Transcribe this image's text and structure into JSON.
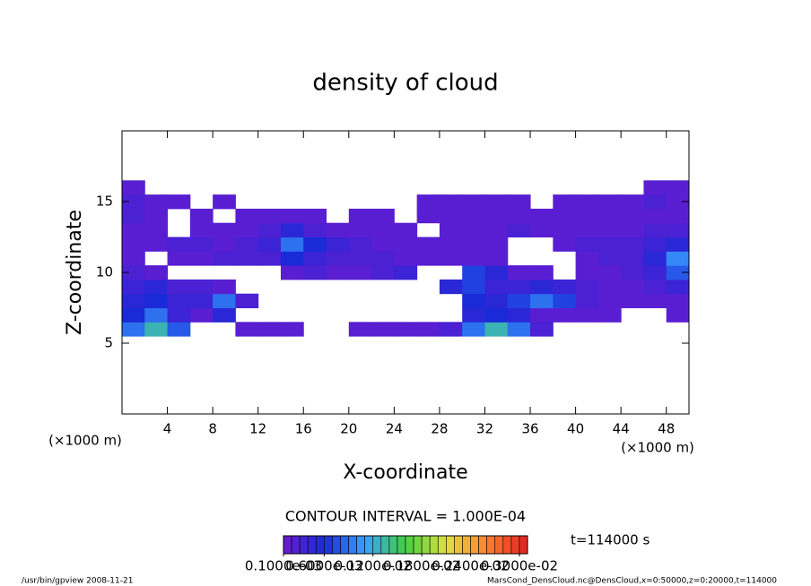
{
  "chart_data": {
    "type": "contour",
    "title": "density of cloud",
    "xlabel": "X-coordinate",
    "ylabel": "Z-coordinate",
    "x_unit": "(×1000 m)",
    "contour_interval": "CONTOUR INTERVAL = 1.000E-04",
    "time_label": "t=114000 s",
    "xlim": [
      0,
      50
    ],
    "ylim": [
      0,
      20
    ],
    "xticks": [
      4,
      8,
      12,
      16,
      20,
      24,
      28,
      32,
      36,
      40,
      44,
      48
    ],
    "yticks": [
      5,
      10,
      15
    ],
    "x": [
      1,
      3,
      5,
      7,
      9,
      11,
      13,
      15,
      17,
      19,
      21,
      23,
      25,
      27,
      29,
      31,
      33,
      35,
      37,
      39,
      41,
      43,
      45,
      47,
      49
    ],
    "z": [
      6,
      7,
      8,
      9,
      10,
      11,
      12,
      13,
      14,
      15,
      16
    ],
    "values": [
      [
        0.0009,
        0.0013,
        0.0008,
        null,
        null,
        0.0002,
        0.0002,
        0.0002,
        null,
        null,
        0.0002,
        0.0002,
        0.0002,
        0.0002,
        0.0003,
        0.0009,
        0.0013,
        0.0009,
        0.0003,
        null,
        null,
        null,
        null,
        null,
        null
      ],
      [
        0.0006,
        0.0009,
        0.0004,
        0.0002,
        0.0005,
        null,
        null,
        null,
        null,
        null,
        null,
        null,
        null,
        null,
        null,
        0.0005,
        0.0006,
        0.0005,
        0.0002,
        0.0002,
        0.0002,
        0.0002,
        null,
        null,
        0.0002
      ],
      [
        0.0005,
        0.0006,
        0.0004,
        0.0004,
        0.0009,
        0.0003,
        null,
        null,
        null,
        null,
        null,
        null,
        null,
        null,
        null,
        0.0006,
        0.0005,
        0.0007,
        0.0009,
        0.0007,
        0.0003,
        0.0002,
        0.0002,
        0.0002,
        0.0002
      ],
      [
        0.0004,
        0.0005,
        0.0003,
        0.0003,
        0.0002,
        null,
        null,
        null,
        null,
        null,
        null,
        null,
        null,
        null,
        0.0005,
        0.0007,
        0.0004,
        0.0004,
        0.0005,
        0.0004,
        0.0003,
        0.0002,
        0.0002,
        0.0003,
        0.0004
      ],
      [
        0.0003,
        0.0002,
        null,
        null,
        null,
        null,
        null,
        0.0002,
        0.0003,
        0.0002,
        0.0002,
        0.0003,
        0.0004,
        null,
        null,
        0.0007,
        0.0005,
        0.0002,
        0.0002,
        null,
        0.0002,
        0.0002,
        0.0003,
        0.0004,
        0.0008
      ],
      [
        0.0002,
        null,
        0.0002,
        0.0002,
        0.0003,
        0.0003,
        0.0003,
        0.0006,
        0.0004,
        0.0003,
        0.0003,
        0.0003,
        0.0002,
        0.0002,
        0.0002,
        0.0002,
        0.0002,
        null,
        null,
        null,
        0.0002,
        0.0003,
        0.0003,
        0.0005,
        0.001
      ],
      [
        0.0002,
        0.0002,
        0.0003,
        0.0003,
        0.0002,
        0.0003,
        0.0004,
        0.0009,
        0.0006,
        0.0004,
        0.0003,
        0.0002,
        0.0002,
        0.0002,
        0.0002,
        0.0002,
        0.0002,
        null,
        null,
        0.0002,
        0.0003,
        0.0003,
        0.0003,
        0.0004,
        0.0005
      ],
      [
        0.0002,
        0.0002,
        null,
        0.0002,
        0.0002,
        0.0002,
        0.0003,
        0.0005,
        0.0003,
        0.0002,
        0.0002,
        0.0002,
        0.0002,
        null,
        0.0002,
        0.0002,
        0.0002,
        0.0003,
        0.0002,
        0.0002,
        0.0002,
        0.0002,
        0.0002,
        0.0003,
        0.0003
      ],
      [
        0.0003,
        0.0002,
        null,
        0.0002,
        null,
        0.0002,
        0.0002,
        0.0002,
        0.0002,
        null,
        0.0002,
        0.0002,
        null,
        0.0002,
        0.0002,
        0.0002,
        0.0002,
        0.0002,
        0.0002,
        0.0002,
        0.0002,
        0.0002,
        0.0002,
        0.0002,
        0.0002
      ],
      [
        0.0003,
        0.0002,
        0.0002,
        null,
        0.0002,
        null,
        null,
        null,
        null,
        null,
        null,
        null,
        null,
        0.0002,
        0.0002,
        0.0002,
        0.0002,
        0.0002,
        null,
        0.0002,
        0.0002,
        0.0002,
        0.0002,
        0.0003,
        0.0002
      ],
      [
        0.0002,
        null,
        null,
        null,
        null,
        null,
        null,
        null,
        null,
        null,
        null,
        null,
        null,
        null,
        null,
        null,
        null,
        null,
        null,
        null,
        null,
        null,
        null,
        0.0002,
        0.0002
      ]
    ],
    "clim": [
      0.0001,
      0.0031
    ],
    "colormap": [
      "#6a1bd0",
      "#1a2ad8",
      "#3aa0ff",
      "#40d040",
      "#e0e040",
      "#ff8030",
      "#e02020"
    ],
    "colorbar_ticks": [
      {
        "value": 0.0001,
        "label": "0.1000e-03"
      },
      {
        "value": 0.0006,
        "label": "0.6000e-03"
      },
      {
        "value": 0.0012,
        "label": "0.1200e-02"
      },
      {
        "value": 0.0018,
        "label": "0.1800e-02"
      },
      {
        "value": 0.0024,
        "label": "0.2400e-02"
      },
      {
        "value": 0.003,
        "label": "0.3000e-02"
      }
    ],
    "footer_left": "/usr/bin/gpview  2008-11-21",
    "footer_right": "MarsCond_DensCloud.nc@DensCloud,x=0:50000,z=0:20000,t=114000"
  }
}
